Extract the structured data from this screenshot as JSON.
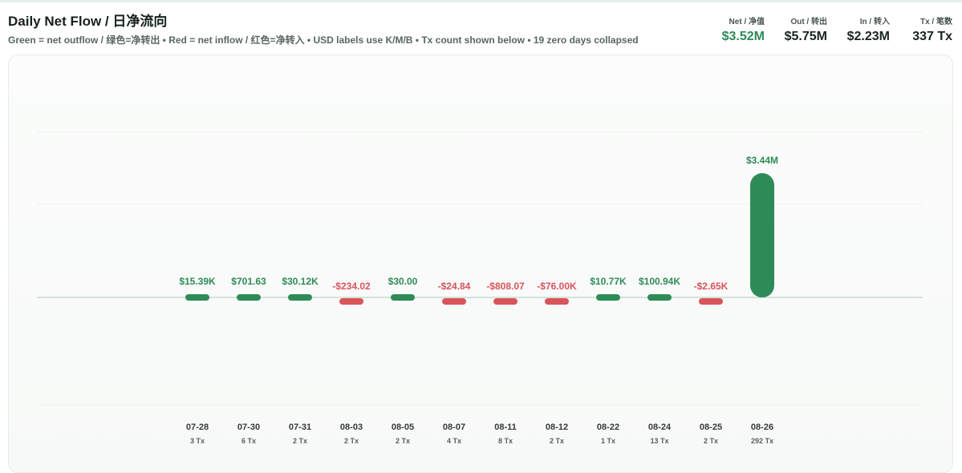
{
  "header": {
    "title": "Daily Net Flow / 日净流向",
    "subtitle": "Green = net outflow / 绿色=净转出 • Red = net inflow / 红色=净转入 • USD labels use K/M/B • Tx count shown below • 19 zero days collapsed"
  },
  "stats": [
    {
      "label": "Net / 净值",
      "value": "$3.52M",
      "color": "#2e8b57"
    },
    {
      "label": "Out / 转出",
      "value": "$5.75M"
    },
    {
      "label": "In / 转入",
      "value": "$2.23M"
    },
    {
      "label": "Tx / 笔数",
      "value": "337 Tx"
    }
  ],
  "colors": {
    "positive": "#2e8b57",
    "negative": "#d9545b",
    "baseline": "#bcd5c6",
    "grid": "#eef2ef"
  },
  "chart_data": {
    "type": "bar",
    "categories": [
      "07-28",
      "07-30",
      "07-31",
      "08-03",
      "08-05",
      "08-07",
      "08-11",
      "08-12",
      "08-22",
      "08-24",
      "08-25",
      "08-26"
    ],
    "values": [
      15390,
      701.63,
      30120,
      -234.02,
      30.0,
      -24.84,
      -808.07,
      -76000,
      10770,
      100940,
      -2650,
      3440000
    ],
    "value_labels": [
      "$15.39K",
      "$701.63",
      "$30.12K",
      "-$234.02",
      "$30.00",
      "-$24.84",
      "-$808.07",
      "-$76.00K",
      "$10.77K",
      "$100.94K",
      "-$2.65K",
      "$3.44M"
    ],
    "tx_labels": [
      "3 Tx",
      "6 Tx",
      "2 Tx",
      "2 Tx",
      "2 Tx",
      "4 Tx",
      "8 Tx",
      "2 Tx",
      "1 Tx",
      "13 Tx",
      "2 Tx",
      "292 Tx"
    ],
    "ylim": [
      -3440000,
      4100000
    ],
    "grid": true,
    "title": "",
    "xlabel": "",
    "ylabel": ""
  }
}
